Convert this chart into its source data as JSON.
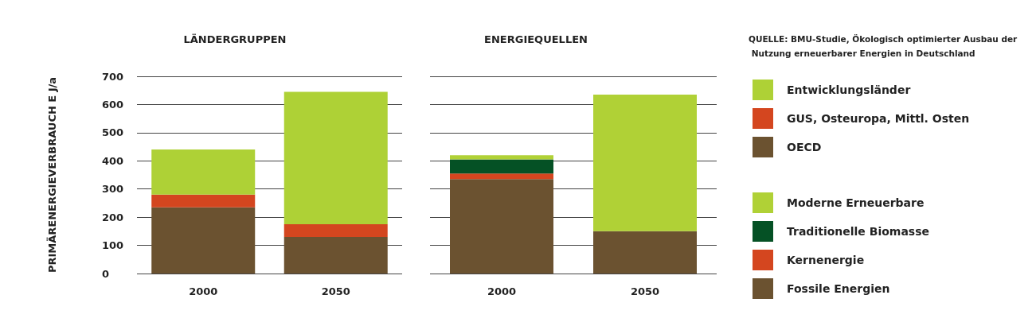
{
  "chart_data": [
    {
      "type": "bar",
      "title": "LÄNDERGRUPPEN",
      "ylabel": "PRIMÄRENERGIEVERBRAUCH E J/a",
      "categories": [
        "2000",
        "2050"
      ],
      "stacked": true,
      "series": [
        {
          "name": "OECD",
          "color": "#6b5230",
          "values": [
            235,
            130
          ]
        },
        {
          "name": "GUS, Osteuropa, Mittl. Osten",
          "color": "#d4461f",
          "values": [
            45,
            45
          ]
        },
        {
          "name": "Entwicklungsländer",
          "color": "#aed136",
          "values": [
            160,
            470
          ]
        }
      ],
      "ylim": [
        0,
        700
      ],
      "yticks": [
        0,
        100,
        200,
        300,
        400,
        500,
        600,
        700
      ],
      "grid": "y",
      "legend": "right"
    },
    {
      "type": "bar",
      "title": "ENERGIEQUELLEN",
      "categories": [
        "2000",
        "2050"
      ],
      "stacked": true,
      "series": [
        {
          "name": "Fossile Energien",
          "color": "#6b5230",
          "values": [
            335,
            150
          ]
        },
        {
          "name": "Kernenergie",
          "color": "#d4461f",
          "values": [
            20,
            0
          ]
        },
        {
          "name": "Traditionelle Biomasse",
          "color": "#055125",
          "values": [
            50,
            0
          ]
        },
        {
          "name": "Moderne Erneuerbare",
          "color": "#b0d136",
          "values": [
            15,
            485
          ]
        }
      ],
      "ylim": [
        0,
        700
      ],
      "yticks": [
        0,
        100,
        200,
        300,
        400,
        500,
        600,
        700
      ],
      "grid": "y",
      "legend": "right",
      "tick_labels": "x",
      "annotations": [
        "QUELLE: BMU-Studie, Ökologisch optimierter Ausbau der Nutzung erneuerbarer Energien in Deutschland"
      ]
    }
  ]
}
